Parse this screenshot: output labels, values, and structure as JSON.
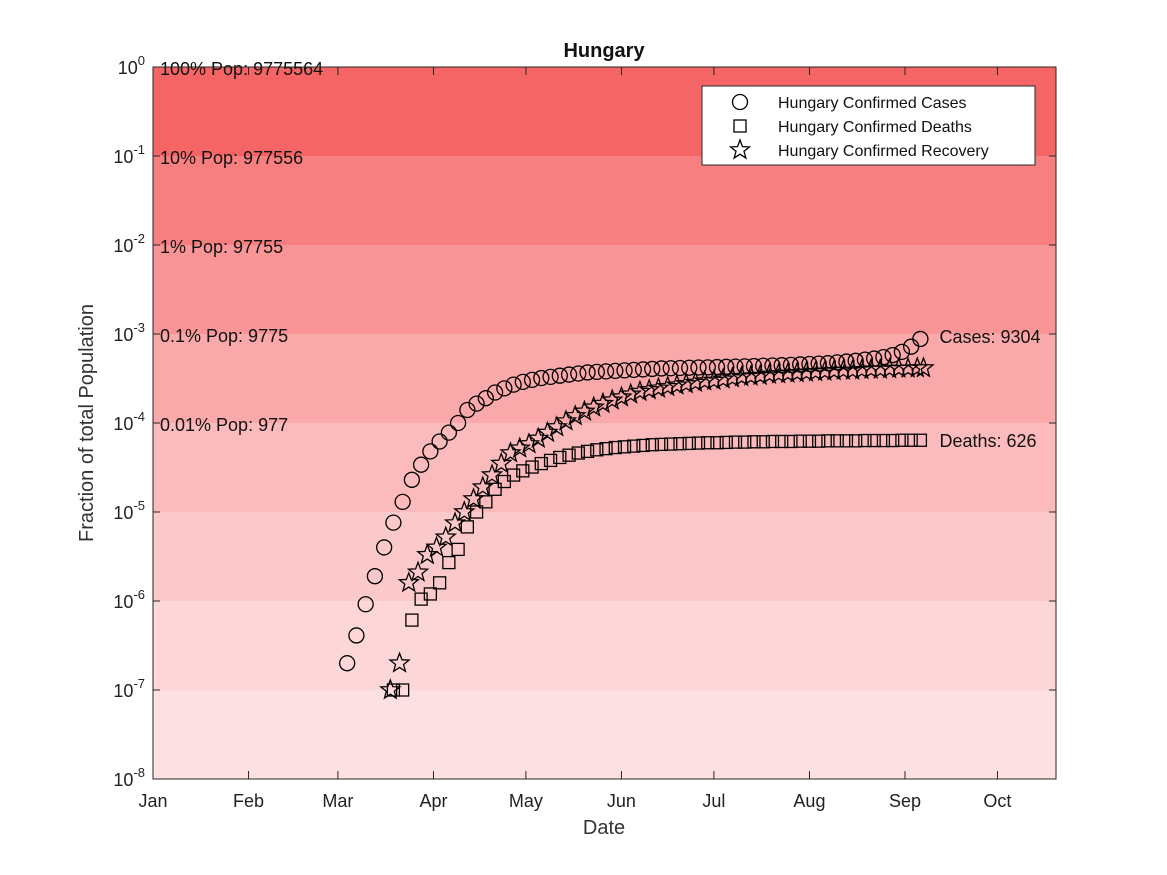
{
  "chart_data": {
    "type": "scatter",
    "title": "Hungary",
    "xlabel": "Date",
    "ylabel": "Fraction of total Population",
    "yscale": "log",
    "ylim": [
      1e-08,
      1
    ],
    "xlim": [
      "2020-01-01",
      "2020-10-20"
    ],
    "x_ticks": [
      {
        "date": "2020-01-01",
        "label": "Jan"
      },
      {
        "date": "2020-02-01",
        "label": "Feb"
      },
      {
        "date": "2020-03-01",
        "label": "Mar"
      },
      {
        "date": "2020-04-01",
        "label": "Apr"
      },
      {
        "date": "2020-05-01",
        "label": "May"
      },
      {
        "date": "2020-06-01",
        "label": "Jun"
      },
      {
        "date": "2020-07-01",
        "label": "Jul"
      },
      {
        "date": "2020-08-01",
        "label": "Aug"
      },
      {
        "date": "2020-09-01",
        "label": "Sep"
      },
      {
        "date": "2020-10-01",
        "label": "Oct"
      }
    ],
    "y_ticks": [
      {
        "value": 1e-08,
        "base": "10",
        "exp": "-8"
      },
      {
        "value": 1e-07,
        "base": "10",
        "exp": "-7"
      },
      {
        "value": 1e-06,
        "base": "10",
        "exp": "-6"
      },
      {
        "value": 1e-05,
        "base": "10",
        "exp": "-5"
      },
      {
        "value": 0.0001,
        "base": "10",
        "exp": "-4"
      },
      {
        "value": 0.001,
        "base": "10",
        "exp": "-3"
      },
      {
        "value": 0.01,
        "base": "10",
        "exp": "-2"
      },
      {
        "value": 0.1,
        "base": "10",
        "exp": "-1"
      },
      {
        "value": 1,
        "base": "10",
        "exp": "0"
      }
    ],
    "bands": [
      {
        "from": 1e-08,
        "to": 1e-07,
        "color": "#fde1e2"
      },
      {
        "from": 1e-07,
        "to": 1e-06,
        "color": "#fdd6d7"
      },
      {
        "from": 1e-06,
        "to": 1e-05,
        "color": "#fcc9ca"
      },
      {
        "from": 1e-05,
        "to": 0.0001,
        "color": "#fbbbbc"
      },
      {
        "from": 0.0001,
        "to": 0.001,
        "color": "#faa9aa"
      },
      {
        "from": 0.001,
        "to": 0.01,
        "color": "#f99596"
      },
      {
        "from": 0.01,
        "to": 0.1,
        "color": "#f77f80"
      },
      {
        "from": 0.1,
        "to": 1,
        "color": "#f66566"
      }
    ],
    "band_labels": [
      {
        "value": 1,
        "text": "100% Pop: 9775564"
      },
      {
        "value": 0.1,
        "text": "10% Pop: 977556"
      },
      {
        "value": 0.01,
        "text": "1% Pop: 97755"
      },
      {
        "value": 0.001,
        "text": "0.1% Pop: 9775"
      },
      {
        "value": 0.0001,
        "text": "0.01% Pop: 977"
      }
    ],
    "end_labels": [
      {
        "date": "2020-09-07",
        "value": 0.00095,
        "text": "Cases: 9304"
      },
      {
        "date": "2020-09-07",
        "value": 6.4e-05,
        "text": "Deaths: 626"
      }
    ],
    "legend": {
      "placement": "top-right",
      "entries": [
        "Hungary Confirmed Cases",
        "Hungary Confirmed Deaths",
        "Hungary Confirmed Recovery"
      ]
    },
    "series": [
      {
        "name": "Hungary Confirmed Cases",
        "marker": "circle",
        "points": [
          [
            "2020-03-04",
            2e-07
          ],
          [
            "2020-03-07",
            4.1e-07
          ],
          [
            "2020-03-10",
            9.2e-07
          ],
          [
            "2020-03-13",
            1.9e-06
          ],
          [
            "2020-03-16",
            4e-06
          ],
          [
            "2020-03-19",
            7.6e-06
          ],
          [
            "2020-03-22",
            1.3e-05
          ],
          [
            "2020-03-25",
            2.3e-05
          ],
          [
            "2020-03-28",
            3.4e-05
          ],
          [
            "2020-03-31",
            4.8e-05
          ],
          [
            "2020-04-03",
            6.2e-05
          ],
          [
            "2020-04-06",
            7.8e-05
          ],
          [
            "2020-04-09",
            0.0001
          ],
          [
            "2020-04-12",
            0.00014
          ],
          [
            "2020-04-15",
            0.000165
          ],
          [
            "2020-04-18",
            0.00019
          ],
          [
            "2020-04-21",
            0.00022
          ],
          [
            "2020-04-24",
            0.000245
          ],
          [
            "2020-04-27",
            0.00027
          ],
          [
            "2020-04-30",
            0.00029
          ],
          [
            "2020-05-03",
            0.000305
          ],
          [
            "2020-05-06",
            0.00032
          ],
          [
            "2020-05-09",
            0.00033
          ],
          [
            "2020-05-12",
            0.00034
          ],
          [
            "2020-05-15",
            0.00035
          ],
          [
            "2020-05-18",
            0.00036
          ],
          [
            "2020-05-21",
            0.00037
          ],
          [
            "2020-05-24",
            0.000375
          ],
          [
            "2020-05-27",
            0.00038
          ],
          [
            "2020-05-30",
            0.000385
          ],
          [
            "2020-06-02",
            0.00039
          ],
          [
            "2020-06-05",
            0.000395
          ],
          [
            "2020-06-08",
            0.0004
          ],
          [
            "2020-06-11",
            0.000405
          ],
          [
            "2020-06-14",
            0.00041
          ],
          [
            "2020-06-17",
            0.000412
          ],
          [
            "2020-06-20",
            0.000415
          ],
          [
            "2020-06-23",
            0.000418
          ],
          [
            "2020-06-26",
            0.00042
          ],
          [
            "2020-06-29",
            0.000422
          ],
          [
            "2020-07-02",
            0.000425
          ],
          [
            "2020-07-05",
            0.000428
          ],
          [
            "2020-07-08",
            0.00043
          ],
          [
            "2020-07-11",
            0.000433
          ],
          [
            "2020-07-14",
            0.000436
          ],
          [
            "2020-07-17",
            0.00044
          ],
          [
            "2020-07-20",
            0.000443
          ],
          [
            "2020-07-23",
            0.000446
          ],
          [
            "2020-07-26",
            0.00045
          ],
          [
            "2020-07-29",
            0.000455
          ],
          [
            "2020-08-01",
            0.00046
          ],
          [
            "2020-08-04",
            0.000465
          ],
          [
            "2020-08-07",
            0.00047
          ],
          [
            "2020-08-10",
            0.00048
          ],
          [
            "2020-08-13",
            0.00049
          ],
          [
            "2020-08-16",
            0.0005
          ],
          [
            "2020-08-19",
            0.000515
          ],
          [
            "2020-08-22",
            0.00053
          ],
          [
            "2020-08-25",
            0.00055
          ],
          [
            "2020-08-28",
            0.00058
          ],
          [
            "2020-08-31",
            0.00063
          ],
          [
            "2020-09-03",
            0.00072
          ],
          [
            "2020-09-06",
            0.00088
          ]
        ]
      },
      {
        "name": "Hungary Confirmed Deaths",
        "marker": "square",
        "points": [
          [
            "2020-03-19",
            1e-07
          ],
          [
            "2020-03-22",
            1e-07
          ],
          [
            "2020-03-25",
            6.1e-07
          ],
          [
            "2020-03-28",
            1.05e-06
          ],
          [
            "2020-03-31",
            1.2e-06
          ],
          [
            "2020-04-03",
            1.6e-06
          ],
          [
            "2020-04-06",
            2.7e-06
          ],
          [
            "2020-04-09",
            3.8e-06
          ],
          [
            "2020-04-12",
            6.8e-06
          ],
          [
            "2020-04-15",
            1e-05
          ],
          [
            "2020-04-18",
            1.3e-05
          ],
          [
            "2020-04-21",
            1.8e-05
          ],
          [
            "2020-04-24",
            2.2e-05
          ],
          [
            "2020-04-27",
            2.6e-05
          ],
          [
            "2020-04-30",
            2.9e-05
          ],
          [
            "2020-05-03",
            3.2e-05
          ],
          [
            "2020-05-06",
            3.5e-05
          ],
          [
            "2020-05-09",
            3.8e-05
          ],
          [
            "2020-05-12",
            4.1e-05
          ],
          [
            "2020-05-15",
            4.35e-05
          ],
          [
            "2020-05-18",
            4.6e-05
          ],
          [
            "2020-05-21",
            4.8e-05
          ],
          [
            "2020-05-24",
            5e-05
          ],
          [
            "2020-05-27",
            5.15e-05
          ],
          [
            "2020-05-30",
            5.3e-05
          ],
          [
            "2020-06-02",
            5.4e-05
          ],
          [
            "2020-06-05",
            5.5e-05
          ],
          [
            "2020-06-08",
            5.6e-05
          ],
          [
            "2020-06-11",
            5.7e-05
          ],
          [
            "2020-06-14",
            5.75e-05
          ],
          [
            "2020-06-17",
            5.8e-05
          ],
          [
            "2020-06-20",
            5.85e-05
          ],
          [
            "2020-06-23",
            5.9e-05
          ],
          [
            "2020-06-26",
            5.95e-05
          ],
          [
            "2020-06-29",
            6e-05
          ],
          [
            "2020-07-02",
            6e-05
          ],
          [
            "2020-07-05",
            6.05e-05
          ],
          [
            "2020-07-08",
            6.1e-05
          ],
          [
            "2020-07-11",
            6.1e-05
          ],
          [
            "2020-07-14",
            6.15e-05
          ],
          [
            "2020-07-17",
            6.15e-05
          ],
          [
            "2020-07-20",
            6.2e-05
          ],
          [
            "2020-07-23",
            6.2e-05
          ],
          [
            "2020-07-26",
            6.2e-05
          ],
          [
            "2020-07-29",
            6.25e-05
          ],
          [
            "2020-08-01",
            6.25e-05
          ],
          [
            "2020-08-04",
            6.25e-05
          ],
          [
            "2020-08-07",
            6.3e-05
          ],
          [
            "2020-08-10",
            6.3e-05
          ],
          [
            "2020-08-13",
            6.3e-05
          ],
          [
            "2020-08-16",
            6.3e-05
          ],
          [
            "2020-08-19",
            6.35e-05
          ],
          [
            "2020-08-22",
            6.35e-05
          ],
          [
            "2020-08-25",
            6.35e-05
          ],
          [
            "2020-08-28",
            6.35e-05
          ],
          [
            "2020-08-31",
            6.4e-05
          ],
          [
            "2020-09-03",
            6.4e-05
          ],
          [
            "2020-09-06",
            6.4e-05
          ]
        ]
      },
      {
        "name": "Hungary Confirmed Recovery",
        "marker": "star",
        "points": [
          [
            "2020-03-18",
            1e-07
          ],
          [
            "2020-03-21",
            2e-07
          ],
          [
            "2020-03-24",
            1.6e-06
          ],
          [
            "2020-03-27",
            2.1e-06
          ],
          [
            "2020-03-30",
            3.3e-06
          ],
          [
            "2020-04-02",
            4e-06
          ],
          [
            "2020-04-05",
            5.2e-06
          ],
          [
            "2020-04-08",
            7.5e-06
          ],
          [
            "2020-04-11",
            1e-05
          ],
          [
            "2020-04-14",
            1.4e-05
          ],
          [
            "2020-04-17",
            1.9e-05
          ],
          [
            "2020-04-20",
            2.6e-05
          ],
          [
            "2020-04-23",
            3.5e-05
          ],
          [
            "2020-04-26",
            4.6e-05
          ],
          [
            "2020-04-29",
            5.2e-05
          ],
          [
            "2020-05-02",
            5.8e-05
          ],
          [
            "2020-05-05",
            6.7e-05
          ],
          [
            "2020-05-08",
            7.8e-05
          ],
          [
            "2020-05-11",
            9e-05
          ],
          [
            "2020-05-14",
            0.000105
          ],
          [
            "2020-05-17",
            0.00012
          ],
          [
            "2020-05-20",
            0.000135
          ],
          [
            "2020-05-23",
            0.00015
          ],
          [
            "2020-05-26",
            0.000165
          ],
          [
            "2020-05-29",
            0.00018
          ],
          [
            "2020-06-01",
            0.000195
          ],
          [
            "2020-06-04",
            0.00021
          ],
          [
            "2020-06-07",
            0.000225
          ],
          [
            "2020-06-10",
            0.000235
          ],
          [
            "2020-06-13",
            0.000245
          ],
          [
            "2020-06-16",
            0.000255
          ],
          [
            "2020-06-19",
            0.000265
          ],
          [
            "2020-06-22",
            0.000275
          ],
          [
            "2020-06-25",
            0.000285
          ],
          [
            "2020-06-28",
            0.000295
          ],
          [
            "2020-07-01",
            0.0003
          ],
          [
            "2020-07-04",
            0.00031
          ],
          [
            "2020-07-07",
            0.00032
          ],
          [
            "2020-07-10",
            0.00033
          ],
          [
            "2020-07-13",
            0.000335
          ],
          [
            "2020-07-16",
            0.00034
          ],
          [
            "2020-07-19",
            0.00035
          ],
          [
            "2020-07-22",
            0.000355
          ],
          [
            "2020-07-25",
            0.00036
          ],
          [
            "2020-07-28",
            0.000365
          ],
          [
            "2020-07-31",
            0.00037
          ],
          [
            "2020-08-03",
            0.000375
          ],
          [
            "2020-08-06",
            0.00038
          ],
          [
            "2020-08-09",
            0.000385
          ],
          [
            "2020-08-12",
            0.00039
          ],
          [
            "2020-08-15",
            0.00039
          ],
          [
            "2020-08-18",
            0.000395
          ],
          [
            "2020-08-21",
            0.0004
          ],
          [
            "2020-08-24",
            0.0004
          ],
          [
            "2020-08-27",
            0.000405
          ],
          [
            "2020-08-30",
            0.00041
          ],
          [
            "2020-09-02",
            0.00041
          ],
          [
            "2020-09-05",
            0.000415
          ],
          [
            "2020-09-07",
            0.000415
          ]
        ]
      }
    ]
  }
}
